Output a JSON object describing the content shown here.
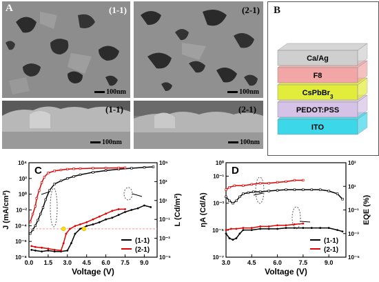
{
  "panelA": {
    "label": "A",
    "top_left": {
      "sample": "(1-1)",
      "scale": "100nm"
    },
    "top_right": {
      "sample": "(2-1)",
      "scale": "100nm"
    },
    "bottom_left": {
      "sample": "(1-1)",
      "scale": "100nm"
    },
    "bottom_right": {
      "sample": "(2-1)",
      "scale": "100nm"
    }
  },
  "panelB": {
    "label": "B",
    "layers": [
      {
        "name": "Ca/Ag",
        "color": "#cfcfcf"
      },
      {
        "name": "F8",
        "color": "#f2a6a6"
      },
      {
        "name": "CsPbBr",
        "sub": "3",
        "color": "#e2ec3a"
      },
      {
        "name": "PEDOT:PSS",
        "color": "#d6c2e6"
      },
      {
        "name": "ITO",
        "color": "#3dd7ea"
      }
    ]
  },
  "chart_data": [
    {
      "type": "line",
      "label": "C",
      "xlabel": "Voltage (V)",
      "ylabel_left": "J (mA/cm²)",
      "ylabel_right": "L (Cd/m²)",
      "xlim": [
        0,
        10
      ],
      "xticks": [
        "0.0",
        "1.5",
        "3.0",
        "4.5",
        "6.0",
        "7.5",
        "9.0"
      ],
      "xtick_values": [
        0,
        1.5,
        3,
        4.5,
        6,
        7.5,
        9
      ],
      "left_axis": {
        "scale": "log",
        "lim": [
          1e-08,
          10000.0
        ],
        "ticks": [
          "10⁻⁸",
          "10⁻⁶",
          "10⁻⁴",
          "10⁻²",
          "10⁰",
          "10²",
          "10⁴"
        ],
        "tick_values": [
          1e-08,
          1e-06,
          0.0001,
          0.01,
          1,
          100,
          10000
        ]
      },
      "right_axis": {
        "scale": "log",
        "lim": [
          1e-05,
          100000.0
        ],
        "ticks": [
          "10⁻⁵",
          "10⁻³",
          "10⁻¹",
          "10¹",
          "10³",
          "10⁵"
        ],
        "tick_values": [
          1e-05,
          0.001,
          0.1,
          10,
          1000,
          100000
        ]
      },
      "legend": {
        "position": "bottom-right",
        "entries": [
          "(1-1)",
          "(2-1)"
        ]
      },
      "series": [
        {
          "name": "(1-1)",
          "color": "#000000",
          "axis": "left",
          "x": [
            0.1,
            0.3,
            0.5,
            0.7,
            0.9,
            1.1,
            1.3,
            1.6,
            2.0,
            2.5,
            3.0,
            3.5,
            4.0,
            5.0,
            6.0,
            7.0,
            8.0,
            9.0,
            9.7
          ],
          "y": [
            1e-05,
            3e-05,
            0.0001,
            0.0005,
            0.003,
            0.02,
            0.2,
            3,
            20,
            50,
            100,
            180,
            300,
            600,
            1000,
            1500,
            2000,
            2600,
            3000
          ]
        },
        {
          "name": "(2-1)",
          "color": "#e00000",
          "axis": "left",
          "x": [
            0.1,
            0.3,
            0.5,
            0.6,
            0.8,
            1.0,
            1.2,
            1.5,
            2.0,
            2.5,
            3.0,
            3.5,
            4.0,
            5.0,
            6.0,
            7.0,
            7.5
          ],
          "y": [
            0.0003,
            0.003,
            0.03,
            0.3,
            3,
            30,
            150,
            500,
            900,
            1200,
            1500,
            1700,
            1800,
            2000,
            2100,
            2200,
            2300
          ]
        },
        {
          "name": "(1-1)",
          "color": "#000000",
          "axis": "right",
          "x": [
            0.2,
            0.5,
            1.0,
            1.5,
            2.0,
            2.5,
            3.0,
            3.3,
            3.6,
            4.0,
            4.5,
            5.0,
            5.5,
            6.0,
            6.5,
            7.0,
            7.5,
            8.0,
            8.5,
            9.0,
            9.5
          ],
          "y": [
            6e-05,
            5e-05,
            4e-05,
            5e-05,
            4e-05,
            4e-05,
            5e-05,
            0.0003,
            0.003,
            0.01,
            0.02,
            0.03,
            0.05,
            0.1,
            0.15,
            0.3,
            0.6,
            1,
            1.5,
            3,
            2
          ]
        },
        {
          "name": "(2-1)",
          "color": "#e00000",
          "axis": "right",
          "x": [
            0.2,
            0.5,
            1.0,
            1.5,
            2.0,
            2.5,
            2.7,
            2.9,
            3.2,
            3.6,
            4.0,
            4.5,
            5.0,
            5.5,
            6.0,
            6.5,
            7.0,
            7.5
          ],
          "y": [
            0.00015,
            0.00012,
            0.0001,
            8e-05,
            6e-05,
            5e-05,
            0.0003,
            0.003,
            0.01,
            0.02,
            0.03,
            0.05,
            0.1,
            0.2,
            0.4,
            0.8,
            1.2,
            1.2
          ]
        }
      ],
      "reference_line": {
        "axis": "right",
        "y": 0.01,
        "color": "#ff9999"
      },
      "markers": [
        {
          "x": 2.7,
          "y": 0.01,
          "color": "#ffe000"
        },
        {
          "x": 4.3,
          "y": 0.01,
          "color": "#ffe000"
        }
      ]
    },
    {
      "type": "line",
      "label": "D",
      "xlabel": "Voltage (V)",
      "ylabel_left": "ηA (Cd/A)",
      "ylabel_right": "EQE (%)",
      "xlim": [
        3,
        10
      ],
      "xticks": [
        "3.0",
        "4.5",
        "6.0",
        "7.5",
        "9.0"
      ],
      "xtick_values": [
        3,
        4.5,
        6,
        7.5,
        9
      ],
      "left_axis": {
        "scale": "log",
        "lim": [
          1e-07,
          1
        ],
        "ticks": [
          "10⁻⁷",
          "10⁻⁵",
          "10⁻³",
          "10⁻¹"
        ],
        "tick_values": [
          1e-07,
          1e-05,
          0.001,
          0.1
        ]
      },
      "left_axis_extra": {
        "tick": "10⁰",
        "value": 1
      },
      "right_axis": {
        "scale": "log",
        "lim": [
          1e-05,
          1000
        ],
        "ticks": [
          "10⁻⁵",
          "10⁻³",
          "10⁻¹",
          "10¹",
          "10³"
        ],
        "tick_values": [
          1e-05,
          0.001,
          0.1,
          10,
          1000
        ]
      },
      "legend": {
        "position": "bottom-right",
        "entries": [
          "(1-1)",
          "(2-1)"
        ]
      },
      "series": [
        {
          "name": "(1-1)",
          "color": "#000000",
          "axis": "left",
          "x": [
            3.0,
            3.2,
            3.4,
            3.6,
            3.8,
            4.0,
            4.3,
            4.6,
            5.0,
            5.5,
            6.0,
            6.5,
            7.0,
            7.5,
            8.0,
            8.5,
            9.0,
            9.5,
            9.8
          ],
          "y": [
            0.003,
            0.0015,
            0.001,
            0.0015,
            0.003,
            0.005,
            0.006,
            0.007,
            0.007,
            0.008,
            0.009,
            0.01,
            0.01,
            0.01,
            0.01,
            0.01,
            0.008,
            0.005,
            0.002
          ]
        },
        {
          "name": "(2-1)",
          "color": "#e00000",
          "axis": "left",
          "x": [
            3.0,
            3.2,
            3.5,
            4.0,
            4.5,
            5.0,
            5.5,
            6.0,
            6.5,
            7.0,
            7.5
          ],
          "y": [
            0.01,
            0.015,
            0.02,
            0.02,
            0.025,
            0.03,
            0.03,
            0.035,
            0.04,
            0.05,
            0.05
          ]
        },
        {
          "name": "(1-1)",
          "color": "#000000",
          "axis": "right",
          "x": [
            3.0,
            3.2,
            3.4,
            3.6,
            3.8,
            4.0,
            4.5,
            5.0,
            5.5,
            6.0,
            6.5,
            7.0,
            7.5,
            8.0,
            8.5,
            9.0,
            9.5,
            9.8
          ],
          "y": [
            0.001,
            0.0004,
            0.0003,
            0.0004,
            0.001,
            0.002,
            0.002,
            0.0025,
            0.0025,
            0.0025,
            0.003,
            0.003,
            0.003,
            0.003,
            0.003,
            0.003,
            0.002,
            0.0015
          ]
        },
        {
          "name": "(2-1)",
          "color": "#e00000",
          "axis": "right",
          "x": [
            3.0,
            3.3,
            3.6,
            4.0,
            4.5,
            5.0,
            5.5,
            6.0,
            6.5,
            7.0,
            7.5
          ],
          "y": [
            0.002,
            0.0025,
            0.0025,
            0.003,
            0.003,
            0.004,
            0.004,
            0.005,
            0.005,
            0.006,
            0.007
          ]
        }
      ]
    }
  ]
}
